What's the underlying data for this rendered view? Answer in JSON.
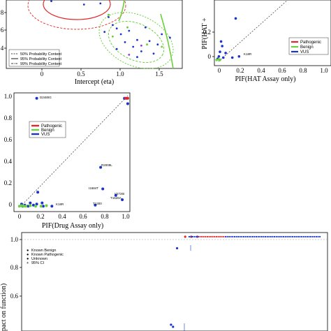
{
  "chart_data": [
    {
      "type": "scatter",
      "xlabel": "Intercept (eta)",
      "xticks": [
        "0",
        "0.5",
        "1.0",
        "1.5"
      ],
      "yticks": [
        "8",
        "6",
        "4"
      ],
      "xlim": [
        -0.3,
        1.85
      ],
      "ylim": [
        3.3,
        9.3
      ],
      "legend": {
        "position": "bottom-left",
        "entries": [
          "50% Probability Content",
          "95% Probability Content",
          "99% Probability Content"
        ]
      },
      "series": [
        {
          "color": "#1a33cc",
          "points": [
            [
              0.25,
              9.2
            ],
            [
              0.65,
              8.9
            ],
            [
              0.85,
              9.0
            ],
            [
              0.95,
              7.8
            ],
            [
              1.0,
              7.1
            ],
            [
              1.05,
              6.8
            ],
            [
              1.1,
              6.3
            ],
            [
              1.2,
              6.6
            ],
            [
              1.25,
              5.2
            ],
            [
              1.3,
              5.8
            ],
            [
              1.4,
              6.9
            ],
            [
              1.45,
              5.7
            ],
            [
              1.55,
              5.4
            ],
            [
              1.6,
              6.3
            ],
            [
              1.35,
              4.8
            ],
            [
              1.15,
              5.6
            ],
            [
              0.9,
              6.5
            ],
            [
              1.5,
              4.6
            ],
            [
              1.7,
              6.0
            ],
            [
              1.05,
              5.0
            ],
            [
              1.3,
              4.3
            ]
          ]
        },
        {
          "color": "#66cc33",
          "points": [
            [
              1.0,
              6.1
            ],
            [
              1.18,
              6.9
            ],
            [
              1.42,
              5.4
            ],
            [
              1.6,
              5.2
            ],
            [
              0.95,
              8.0
            ]
          ]
        },
        {
          "color": "#8a3fcc",
          "points": [
            [
              1.2,
              4.5
            ],
            [
              1.35,
              5.3
            ]
          ]
        }
      ]
    },
    {
      "type": "scatter",
      "xlabel": "PIF(HAT Assay only)",
      "ylabel": "PIF(HAT +",
      "xticks": [
        "0",
        "0.2",
        "0.4",
        "0.6",
        "0.8",
        "1.0"
      ],
      "yticks": [
        "0.2",
        "0"
      ],
      "xlim": [
        -0.02,
        1.02
      ],
      "ylim": [
        -0.05,
        0.52
      ],
      "legend": {
        "position": "top-right",
        "entries": [
          {
            "name": "Pathogenic",
            "color": "#e3262a"
          },
          {
            "name": "Benign",
            "color": "#6ad03c"
          },
          {
            "name": "VUS",
            "color": "#1a33cc"
          }
        ]
      },
      "annotations": [
        {
          "text": "K18R",
          "x": 0.2,
          "y": 0.03
        }
      ],
      "series": [
        {
          "name": "VUS",
          "points": [
            [
              0.17,
              0.36
            ],
            [
              0.04,
              0.16
            ],
            [
              0.05,
              0.12
            ],
            [
              0.03,
              0.07
            ],
            [
              0.08,
              0.06
            ],
            [
              0.02,
              0.03
            ],
            [
              0.01,
              0.01
            ],
            [
              0.06,
              0.02
            ],
            [
              0.2,
              0.03
            ],
            [
              0.14,
              0.02
            ]
          ]
        },
        {
          "name": "Benign",
          "points": [
            [
              0.0,
              0.0
            ],
            [
              0.02,
              0.005
            ],
            [
              0.03,
              0.0
            ]
          ]
        }
      ]
    },
    {
      "type": "scatter",
      "xlabel": "PIF(Drug Assay only)",
      "xticks": [
        "0",
        "0.2",
        "0.4",
        "0.6",
        "0.8",
        "1.0"
      ],
      "yticks": [
        "0",
        "0.2",
        "0.4",
        "0.6",
        "0.8",
        "1.0"
      ],
      "xlim": [
        -0.05,
        1.02
      ],
      "ylim": [
        -0.05,
        1.05
      ],
      "legend": {
        "position": "top-left",
        "entries": [
          {
            "name": "Pathogenic",
            "color": "#e3262a"
          },
          {
            "name": "Benign",
            "color": "#6ad03c"
          },
          {
            "name": "VUS",
            "color": "#1a33cc"
          }
        ]
      },
      "annotations": [
        {
          "text": "D2480G",
          "x": 0.16,
          "y": 1.0
        },
        {
          "text": "R2008L",
          "x": 0.75,
          "y": 0.36
        },
        {
          "text": "I1684T",
          "x": 0.77,
          "y": 0.15
        },
        {
          "text": "V2726I",
          "x": 0.88,
          "y": 0.1
        },
        {
          "text": "T1626A",
          "x": 0.92,
          "y": 0.06
        },
        {
          "text": "T1300",
          "x": 0.7,
          "y": 0.0
        },
        {
          "text": "K18R",
          "x": 0.3,
          "y": 0.0
        }
      ],
      "series": [
        {
          "name": "VUS",
          "points": [
            [
              0.16,
              1.0
            ],
            [
              0.75,
              0.36
            ],
            [
              0.77,
              0.16
            ],
            [
              0.89,
              0.1
            ],
            [
              0.95,
              0.06
            ],
            [
              0.7,
              0.01
            ],
            [
              0.3,
              0.0
            ],
            [
              0.17,
              0.13
            ],
            [
              0.16,
              0.02
            ],
            [
              0.1,
              0.03
            ],
            [
              0.08,
              0.0
            ],
            [
              0.05,
              0.01
            ],
            [
              0.03,
              0.0
            ],
            [
              0.13,
              0.01
            ],
            [
              0.21,
              0.03
            ],
            [
              0.22,
              0.0
            ],
            [
              0.02,
              0.02
            ],
            [
              0.97,
              1.0
            ],
            [
              1.0,
              0.95
            ],
            [
              0.99,
              1.0
            ]
          ]
        },
        {
          "name": "Benign",
          "points": [
            [
              0.0,
              0.0
            ],
            [
              0.02,
              0.005
            ],
            [
              0.04,
              0.0
            ],
            [
              0.06,
              0.0
            ],
            [
              0.1,
              0.005
            ],
            [
              0.15,
              0.0
            ],
            [
              0.2,
              0.0
            ],
            [
              0.25,
              0.005
            ]
          ]
        },
        {
          "name": "Pathogenic",
          "points": [
            [
              0.98,
              1.0
            ],
            [
              1.0,
              1.0
            ]
          ]
        }
      ]
    },
    {
      "type": "scatter",
      "ylabel": "pact on function)",
      "yticks": [
        "1.0",
        "0.8",
        "0.6"
      ],
      "ylim": [
        0.55,
        1.02
      ],
      "legend": {
        "position": "top-left",
        "entries": [
          {
            "name": "Known Benign",
            "color": "#6ad03c"
          },
          {
            "name": "Known Pathogenic",
            "color": "#e3262a"
          },
          {
            "name": "Unknown",
            "color": "#1a33cc"
          },
          {
            "name": "95% CI",
            "color": "#1a33cc"
          }
        ]
      },
      "series": [
        {
          "name": "Unknown",
          "points": [
            [
              0.77,
              0.945
            ],
            [
              0.74,
              0.58
            ],
            [
              0.75,
              0.57
            ]
          ]
        },
        {
          "name": "Known Pathogenic",
          "points": [
            [
              0.81,
              1.0
            ],
            [
              0.84,
              1.0
            ],
            [
              0.87,
              1.0
            ]
          ]
        }
      ]
    }
  ]
}
